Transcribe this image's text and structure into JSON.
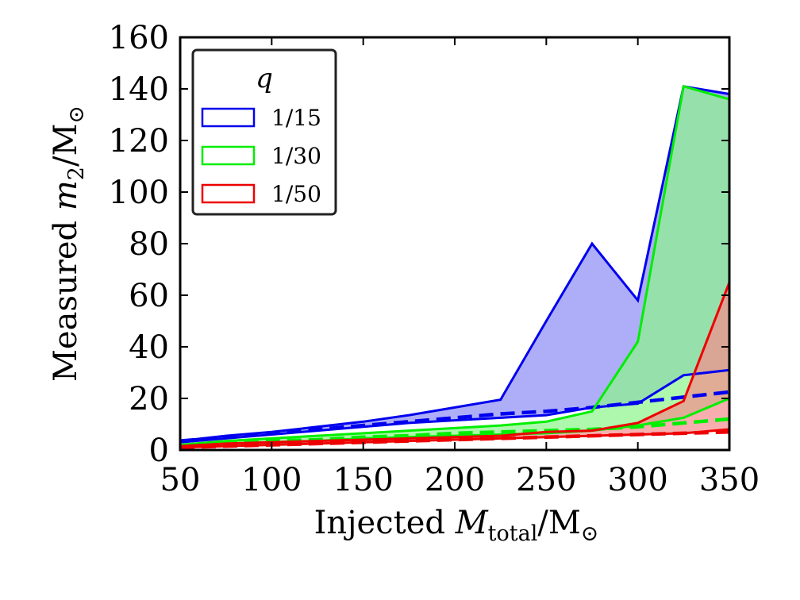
{
  "chart_data": {
    "type": "area",
    "xlabel": {
      "prefix": "Injected ",
      "var": "M",
      "sub": "total",
      "suffix": "/M",
      "sym": "⊙"
    },
    "ylabel": {
      "prefix": "Measured ",
      "var": "m",
      "sub": "2",
      "suffix": "/M",
      "sym": "⊙"
    },
    "xlim": [
      50,
      350
    ],
    "ylim": [
      0,
      160
    ],
    "xticks": [
      50,
      100,
      150,
      200,
      250,
      300,
      350
    ],
    "yticks": [
      0,
      20,
      40,
      60,
      80,
      100,
      120,
      140,
      160
    ],
    "x": [
      50,
      75,
      100,
      125,
      150,
      175,
      200,
      225,
      250,
      275,
      300,
      325,
      350
    ],
    "legend": {
      "title": "q",
      "placement": "upper-left"
    },
    "series": [
      {
        "name": "1/15",
        "color": "#0000ee",
        "fill": "#8c8cf5",
        "upper": [
          3.5,
          5.5,
          7,
          9,
          11,
          13.5,
          16.5,
          19.5,
          50,
          80,
          58,
          141,
          138
        ],
        "lower": [
          3,
          4.5,
          6,
          7.5,
          9,
          10.5,
          11.5,
          12.5,
          13.5,
          16.5,
          18,
          29,
          31
        ],
        "median": [
          3.5,
          5,
          6.5,
          8,
          9.5,
          11,
          12.5,
          14,
          15,
          16.5,
          18.5,
          20.5,
          22.5
        ]
      },
      {
        "name": "1/30",
        "color": "#00ee00",
        "fill": "#8cf58c",
        "upper": [
          2,
          3.5,
          4.5,
          5.5,
          6.5,
          7.5,
          8.5,
          9.5,
          11,
          15,
          42,
          141,
          136
        ],
        "lower": [
          1.5,
          2.5,
          3,
          3.5,
          4.5,
          5,
          5.5,
          6,
          6.5,
          7.5,
          9.5,
          12.5,
          20
        ],
        "median": [
          1.5,
          2.5,
          3.5,
          4,
          5,
          5.5,
          6.5,
          7,
          7.5,
          8,
          9,
          10.5,
          12
        ]
      },
      {
        "name": "1/50",
        "color": "#ee0000",
        "fill": "#f58c8c",
        "upper": [
          1.5,
          2.5,
          3,
          3.5,
          4,
          4.5,
          5,
          5.5,
          7,
          7.5,
          10.5,
          19,
          65
        ],
        "lower": [
          1,
          1.5,
          2,
          2.5,
          3,
          3.5,
          4,
          4.5,
          5,
          5.5,
          6,
          6.5,
          8
        ],
        "median": [
          1,
          1.5,
          2,
          2.5,
          3,
          3.5,
          4,
          4.5,
          5,
          5.5,
          6,
          6.5,
          7
        ]
      }
    ]
  }
}
